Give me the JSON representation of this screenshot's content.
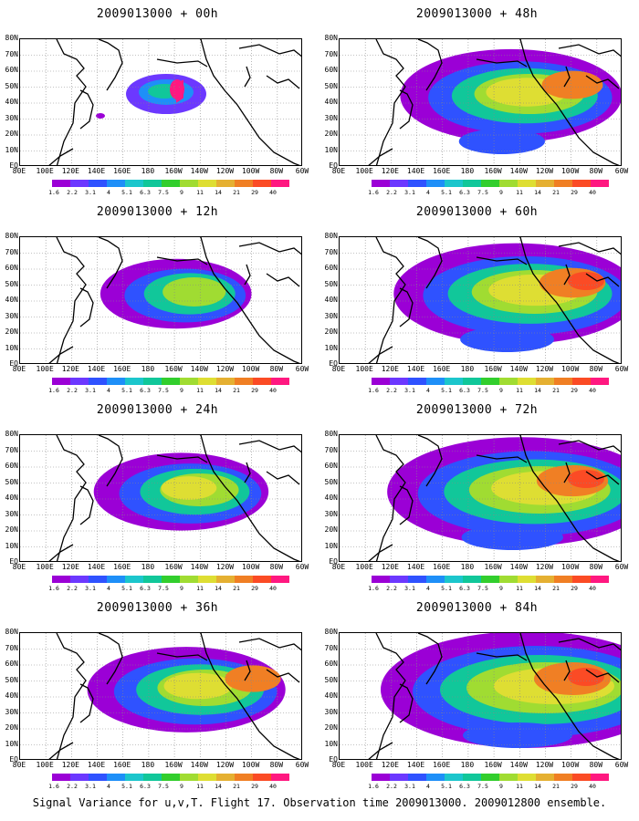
{
  "caption": "Signal Variance for u,v,T. Flight 17. Observation time 2009013000. 2009012800 ensemble.",
  "lat_labels": [
    "80N",
    "70N",
    "60N",
    "50N",
    "40N",
    "30N",
    "20N",
    "10N",
    "EQ"
  ],
  "lon_labels": [
    "80E",
    "100E",
    "120E",
    "140E",
    "160E",
    "180",
    "160W",
    "140W",
    "120W",
    "100W",
    "80W",
    "60W"
  ],
  "colorbar": {
    "colors": [
      "#9b00d6",
      "#6c38ff",
      "#2f52ff",
      "#1e8ff8",
      "#1cc6cc",
      "#11c79a",
      "#32ce2d",
      "#a0dc32",
      "#dede33",
      "#e5b032",
      "#f07f24",
      "#fb4b25",
      "#ff1880"
    ],
    "labels": [
      "1.6",
      "2.2",
      "3.1",
      "4",
      "5.1",
      "6.3",
      "7.5",
      "9",
      "11",
      "14",
      "21",
      "29",
      "40"
    ]
  },
  "panels": [
    {
      "title": "2009013000 + 00h",
      "lead_h": 0
    },
    {
      "title": "2009013000 + 48h",
      "lead_h": 48
    },
    {
      "title": "2009013000 + 12h",
      "lead_h": 12
    },
    {
      "title": "2009013000 + 60h",
      "lead_h": 60
    },
    {
      "title": "2009013000 + 24h",
      "lead_h": 24
    },
    {
      "title": "2009013000 + 72h",
      "lead_h": 72
    },
    {
      "title": "2009013000 + 36h",
      "lead_h": 36
    },
    {
      "title": "2009013000 + 84h",
      "lead_h": 84
    }
  ]
}
